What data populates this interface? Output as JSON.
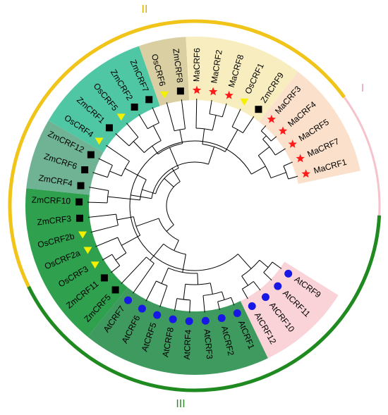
{
  "tree": {
    "clades": [
      {
        "numeral": "I",
        "numeral_color": "#e8a0b0",
        "arc_color": "#f6c3cd"
      },
      {
        "numeral": "II",
        "numeral_color": "#d8b000",
        "arc_color": "#f0c419"
      },
      {
        "numeral": "III",
        "numeral_color": "#2e8b2e",
        "arc_color": "#1f8a1f"
      }
    ],
    "leaves": [
      {
        "label": "AtCRF9",
        "marker": "circle",
        "band": "pink"
      },
      {
        "label": "AtCRF11",
        "marker": "circle",
        "band": "pink"
      },
      {
        "label": "AtCRF10",
        "marker": "circle",
        "band": "pink"
      },
      {
        "label": "AtCRF12",
        "marker": "circle",
        "band": "pink"
      },
      {
        "label": "AtCRF1",
        "marker": "circle",
        "band": "darkgreen"
      },
      {
        "label": "AtCRF2",
        "marker": "circle",
        "band": "darkgreen"
      },
      {
        "label": "AtCRF3",
        "marker": "circle",
        "band": "darkgreen"
      },
      {
        "label": "AtCRF4",
        "marker": "circle",
        "band": "darkgreen"
      },
      {
        "label": "AtCRF8",
        "marker": "circle",
        "band": "darkgreen"
      },
      {
        "label": "AtCRF5",
        "marker": "circle",
        "band": "darkgreen"
      },
      {
        "label": "AtCRF6",
        "marker": "circle",
        "band": "darkgreen"
      },
      {
        "label": "AtCRF7",
        "marker": "circle",
        "band": "darkgreen"
      },
      {
        "label": "ZmCRF5",
        "marker": "square",
        "band": "green"
      },
      {
        "label": "ZmCRF11",
        "marker": "square",
        "band": "green"
      },
      {
        "label": "OsCRF3",
        "marker": "triangle",
        "band": "green"
      },
      {
        "label": "OsCRF2a",
        "marker": "triangle",
        "band": "green"
      },
      {
        "label": "OsCRF2b",
        "marker": "triangle",
        "band": "green"
      },
      {
        "label": "ZmCRF3",
        "marker": "square",
        "band": "green"
      },
      {
        "label": "ZmCRF10",
        "marker": "square",
        "band": "green"
      },
      {
        "label": "ZmCRF4",
        "marker": "square",
        "band": "teal"
      },
      {
        "label": "ZmCRF6",
        "marker": "square",
        "band": "teal"
      },
      {
        "label": "ZmCRF12",
        "marker": "square",
        "band": "teal"
      },
      {
        "label": "OsCRF4",
        "marker": "triangle",
        "band": "mint"
      },
      {
        "label": "ZmCRF1",
        "marker": "square",
        "band": "mint"
      },
      {
        "label": "OsCRF5",
        "marker": "triangle",
        "band": "mint"
      },
      {
        "label": "ZmCRF2",
        "marker": "square",
        "band": "mint"
      },
      {
        "label": "ZmCRF7",
        "marker": "square",
        "band": "mint"
      },
      {
        "label": "OsCRF6",
        "marker": "triangle",
        "band": "tan"
      },
      {
        "label": "ZmCRF8",
        "marker": "square",
        "band": "tan"
      },
      {
        "label": "MaCRF6",
        "marker": "star",
        "band": "cream"
      },
      {
        "label": "MaCRF2",
        "marker": "star",
        "band": "cream"
      },
      {
        "label": "MaCRF8",
        "marker": "star",
        "band": "cream"
      },
      {
        "label": "OsCRF1",
        "marker": "triangle",
        "band": "cream"
      },
      {
        "label": "ZmCRF9",
        "marker": "square",
        "band": "cream"
      },
      {
        "label": "MaCRF3",
        "marker": "star",
        "band": "peach"
      },
      {
        "label": "MaCRF4",
        "marker": "star",
        "band": "peach"
      },
      {
        "label": "MaCRF5",
        "marker": "star",
        "band": "peach"
      },
      {
        "label": "MaCRF7",
        "marker": "star",
        "band": "peach"
      },
      {
        "label": "MaCRF1",
        "marker": "star",
        "band": "peach"
      }
    ]
  },
  "colors": {
    "band_pink": "#f9d3d8",
    "band_darkgreen": "#3e9a5e",
    "band_green": "#2fa04d",
    "band_teal": "#6fb394",
    "band_mint": "#50c7a4",
    "band_tan": "#d9cfa3",
    "band_cream": "#f8edbf",
    "band_peach": "#fbe1cc",
    "circle": "#1717e6",
    "square": "#000000",
    "triangle": "#f5f000",
    "star": "#ff1a1a",
    "branch": "#000000"
  },
  "markers": {
    "circle": "circle-icon",
    "square": "square-icon",
    "triangle": "triangle-icon",
    "star": "star-icon"
  }
}
